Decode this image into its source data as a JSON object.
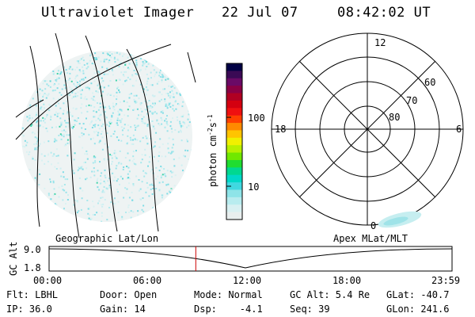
{
  "header": {
    "instrument": "Ultraviolet Imager",
    "date": "22 Jul 07",
    "time": "08:42:02 UT"
  },
  "colorbar": {
    "unit_main": "photon cm",
    "unit_sup1": "-2",
    "unit_mid": "s",
    "unit_sup2": "-1",
    "ticks": [
      "100",
      "10"
    ],
    "colors": [
      "#000044",
      "#3a0a55",
      "#6a0a66",
      "#8a0044",
      "#b00022",
      "#d40010",
      "#ef1010",
      "#ff4000",
      "#ff8a00",
      "#ffc400",
      "#f0f000",
      "#b8f000",
      "#70e800",
      "#20dd30",
      "#00d890",
      "#00d8c8",
      "#40d8e0",
      "#8ee4e8",
      "#b8ecef",
      "#d8f0f2",
      "#e8eeee"
    ]
  },
  "polar": {
    "labels": {
      "top": "12",
      "left": "18",
      "right": "6",
      "bottom": "0",
      "lat60": "60",
      "lat70": "70",
      "lat80": "80"
    }
  },
  "altitude_plot": {
    "left_title": "Geographic Lat/Lon",
    "right_title": "Apex MLat/MLT",
    "ylabel": "GC Alt",
    "y_ticks": [
      "9.0",
      "1.8"
    ],
    "x_ticks": [
      "00:00",
      "06:00",
      "12:00",
      "18:00",
      "23:59"
    ],
    "current_time_fraction": 0.364,
    "marker_color": "#cc0000"
  },
  "info": {
    "flt": "Flt: LBHL",
    "ip": "IP: 36.0",
    "door": "Door: Open",
    "gain": "Gain: 14",
    "mode": "Mode: Normal",
    "dsp": "Dsp:    -4.1",
    "gcalt": "GC Alt: 5.4 Re",
    "seq": "Seq: 39",
    "glat": "GLat: -40.7",
    "glon": "GLon: 241.6"
  }
}
